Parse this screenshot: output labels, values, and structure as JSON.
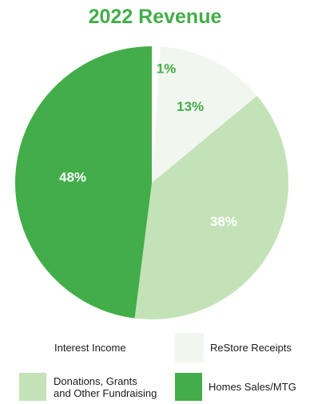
{
  "chart_data": {
    "type": "pie",
    "title": "2022 Revenue",
    "start_angle_deg": 0,
    "direction": "clockwise",
    "slices": [
      {
        "label": "Interest Income",
        "value": 1,
        "display": "1%",
        "color": "#ffffff",
        "label_color": "#43ad49"
      },
      {
        "label": "ReStore Receipts",
        "value": 13,
        "display": "13%",
        "color": "#f1f7ef",
        "label_color": "#43ad49"
      },
      {
        "label": "Donations, Grants\nand Other Fundraising",
        "value": 38,
        "display": "38%",
        "color": "#c4e2b8",
        "label_color": "#ffffff"
      },
      {
        "label": "Homes Sales/MTG",
        "value": 48,
        "display": "48%",
        "color": "#43ad49",
        "label_color": "#ffffff"
      }
    ],
    "legend": {
      "placement": "bottom",
      "items": [
        {
          "label": "Interest Income",
          "color": "#ffffff"
        },
        {
          "label": "ReStore Receipts",
          "color": "#f1f7ef"
        },
        {
          "label": "Donations, Grants\nand Other Fundraising",
          "color": "#c4e2b8"
        },
        {
          "label": "Homes Sales/MTG",
          "color": "#43ad49"
        }
      ]
    }
  }
}
